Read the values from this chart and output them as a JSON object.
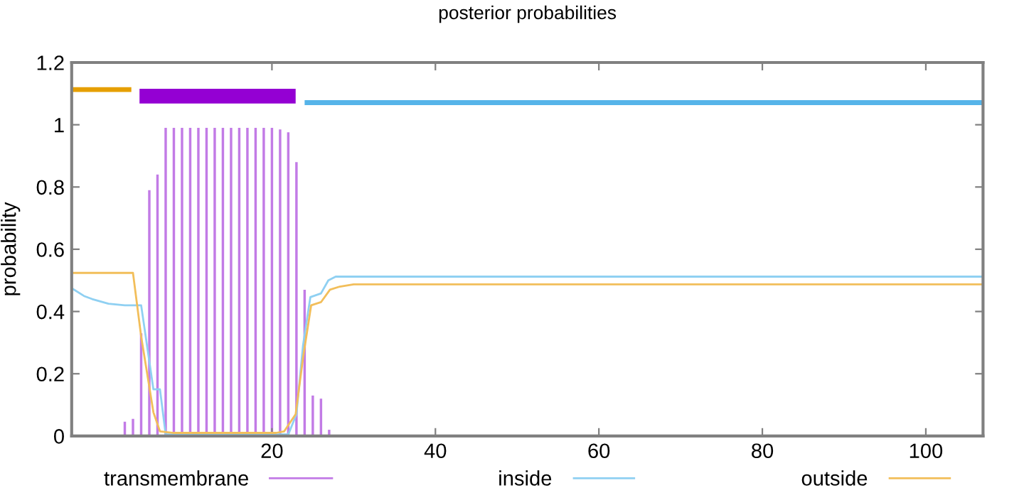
{
  "chart_data": {
    "type": "line",
    "title": "posterior probabilities",
    "ylabel": "probability",
    "xlim": [
      -4.5,
      107
    ],
    "xticks": [
      20,
      40,
      60,
      80,
      100
    ],
    "ylim": [
      0,
      1.2
    ],
    "yticks": [
      0,
      0.2,
      0.4,
      0.6,
      0.8,
      1,
      1.2
    ],
    "grid": false,
    "legend": "bottom",
    "series": [
      {
        "name": "transmembrane",
        "type": "bar",
        "color": "#c27be6",
        "x": [
          2,
          3,
          4,
          5,
          6,
          7,
          8,
          9,
          10,
          11,
          12,
          13,
          14,
          15,
          16,
          17,
          18,
          19,
          20,
          21,
          22,
          23,
          24,
          25,
          26,
          27
        ],
        "values": [
          0.046,
          0.055,
          0.33,
          0.79,
          0.84,
          0.99,
          0.99,
          0.99,
          0.99,
          0.99,
          0.99,
          0.99,
          0.99,
          0.99,
          0.99,
          0.99,
          0.99,
          0.99,
          0.99,
          0.985,
          0.976,
          0.88,
          0.47,
          0.13,
          0.12,
          0.02
        ]
      },
      {
        "name": "inside",
        "color": "#8fd0f2",
        "x": [
          -4.5,
          -3,
          -2,
          0,
          2,
          4,
          5.5,
          6.3,
          7,
          22,
          23,
          23.8,
          24.7,
          26,
          26.9,
          27.8,
          107
        ],
        "values": [
          0.475,
          0.45,
          0.44,
          0.425,
          0.42,
          0.42,
          0.15,
          0.15,
          0.005,
          0.005,
          0.07,
          0.29,
          0.446,
          0.458,
          0.5,
          0.512,
          0.512
        ]
      },
      {
        "name": "outside",
        "color": "#f2be5a",
        "x": [
          -4.5,
          3,
          4,
          5.5,
          6.3,
          8,
          20.5,
          21.5,
          22.9,
          23.8,
          24.8,
          26,
          27.1,
          28.3,
          30,
          107
        ],
        "values": [
          0.524,
          0.524,
          0.32,
          0.076,
          0.015,
          0.01,
          0.01,
          0.015,
          0.07,
          0.25,
          0.42,
          0.43,
          0.47,
          0.48,
          0.487,
          0.487
        ]
      },
      {
        "color": "#e69f00",
        "x": [
          -4.5,
          2.8
        ],
        "values": [
          1.113,
          1.113
        ]
      },
      {
        "color": "#9400d3",
        "x": [
          3.8,
          22.9
        ],
        "values": [
          1.092,
          1.092
        ]
      },
      {
        "color": "#56b4e9",
        "x": [
          24,
          107
        ],
        "values": [
          1.071,
          1.071
        ]
      }
    ]
  }
}
